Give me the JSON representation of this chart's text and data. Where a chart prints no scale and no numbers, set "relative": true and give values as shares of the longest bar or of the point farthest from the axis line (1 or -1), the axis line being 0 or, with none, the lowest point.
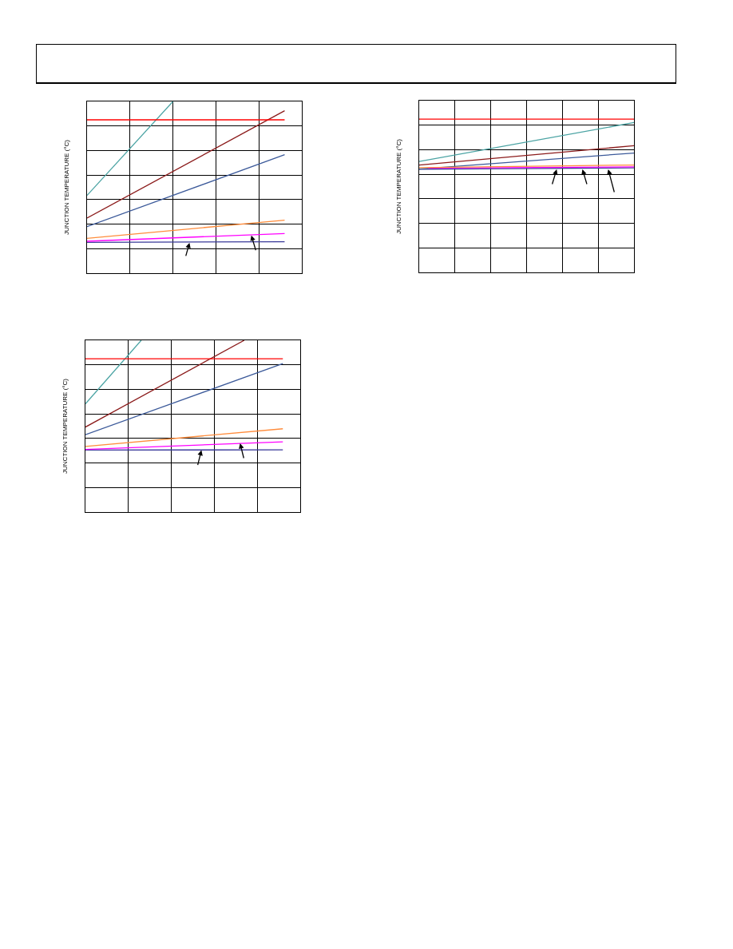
{
  "chart_data": [
    {
      "type": "line",
      "ylabel": "JUNCTION TEMPERATURE (°C)",
      "relative": true,
      "grid": true,
      "marker": "none",
      "line_style": "solid",
      "categories": [
        null,
        null,
        null,
        null,
        null,
        null,
        null,
        null,
        null,
        null,
        null,
        null,
        null,
        null,
        null,
        null,
        null,
        null,
        null,
        null,
        null,
        null,
        null,
        null
      ],
      "series": [
        {
          "color": "#ff0000",
          "values": [
            0.893,
            null,
            null,
            null,
            null,
            null,
            null,
            null,
            null,
            null,
            null,
            null,
            null,
            null,
            null,
            null,
            null,
            null,
            null,
            null,
            null,
            null,
            null,
            0.893
          ]
        },
        {
          "color": "#4aa3a3",
          "values": [
            0.453,
            null,
            null,
            null,
            null,
            null,
            null,
            null,
            null,
            null,
            1.0,
            null,
            null,
            null,
            null,
            null,
            null,
            null,
            null,
            null,
            null,
            null,
            null,
            null
          ]
        },
        {
          "color": "#8b1a1a",
          "values": [
            0.321,
            null,
            null,
            null,
            null,
            null,
            null,
            null,
            null,
            null,
            null,
            null,
            null,
            null,
            null,
            null,
            null,
            null,
            null,
            null,
            null,
            null,
            null,
            0.946
          ]
        },
        {
          "color": "#3c5a9a",
          "values": [
            0.271,
            null,
            null,
            null,
            null,
            null,
            null,
            null,
            null,
            null,
            null,
            null,
            null,
            null,
            null,
            null,
            null,
            null,
            null,
            null,
            null,
            null,
            null,
            0.69
          ]
        },
        {
          "color": "#ff8c3c",
          "values": [
            0.203,
            null,
            null,
            null,
            null,
            null,
            null,
            null,
            null,
            null,
            null,
            null,
            null,
            null,
            null,
            null,
            null,
            null,
            null,
            null,
            null,
            null,
            null,
            0.309
          ]
        },
        {
          "color": "#ff00ff",
          "values": [
            0.186,
            null,
            null,
            null,
            null,
            null,
            null,
            null,
            null,
            null,
            null,
            null,
            null,
            null,
            null,
            null,
            null,
            null,
            null,
            null,
            null,
            null,
            null,
            0.231
          ]
        },
        {
          "color": "#3a3a9a",
          "values": [
            0.18,
            null,
            null,
            null,
            null,
            null,
            null,
            null,
            null,
            null,
            null,
            null,
            null,
            null,
            null,
            null,
            null,
            null,
            null,
            null,
            null,
            null,
            null,
            0.183
          ]
        }
      ]
    },
    {
      "type": "line",
      "ylabel": "JUNCTION TEMPERATURE (°C)",
      "relative": true,
      "grid": true,
      "marker": "none",
      "line_style": "solid",
      "categories": [
        null,
        null,
        null,
        null,
        null,
        null,
        null,
        null,
        null,
        null,
        null,
        null,
        null,
        null,
        null,
        null,
        null,
        null,
        null,
        null,
        null,
        null,
        null,
        null,
        null
      ],
      "series": [
        {
          "color": "#ff0000",
          "values": [
            1.0,
            null,
            null,
            null,
            null,
            null,
            null,
            null,
            null,
            null,
            null,
            null,
            null,
            null,
            null,
            null,
            null,
            null,
            null,
            null,
            null,
            null,
            null,
            null,
            1.0
          ]
        },
        {
          "color": "#4aa3a3",
          "values": [
            0.724,
            null,
            null,
            null,
            null,
            null,
            null,
            null,
            null,
            null,
            null,
            null,
            null,
            null,
            null,
            null,
            null,
            null,
            null,
            null,
            null,
            null,
            null,
            null,
            0.978
          ]
        },
        {
          "color": "#8b1a1a",
          "values": [
            0.701,
            null,
            null,
            null,
            null,
            null,
            null,
            null,
            null,
            null,
            null,
            null,
            null,
            null,
            null,
            null,
            null,
            null,
            null,
            null,
            null,
            null,
            null,
            null,
            0.827
          ]
        },
        {
          "color": "#3c5a9a",
          "values": [
            0.675,
            null,
            null,
            null,
            null,
            null,
            null,
            null,
            null,
            null,
            null,
            null,
            null,
            null,
            null,
            null,
            null,
            null,
            null,
            null,
            null,
            null,
            null,
            null,
            0.779
          ]
        },
        {
          "color": "#ff8c3c",
          "values": [
            0.684,
            null,
            null,
            null,
            null,
            null,
            null,
            null,
            null,
            null,
            null,
            null,
            null,
            null,
            null,
            null,
            null,
            null,
            null,
            null,
            null,
            null,
            null,
            null,
            0.701
          ]
        },
        {
          "color": "#ff00ff",
          "values": [
            null,
            0.681,
            null,
            null,
            null,
            null,
            null,
            null,
            null,
            null,
            null,
            null,
            null,
            null,
            null,
            null,
            null,
            null,
            null,
            null,
            null,
            null,
            null,
            null,
            0.689
          ]
        },
        {
          "color": "#3a3a9a",
          "values": [
            0.674,
            null,
            null,
            null,
            null,
            null,
            null,
            null,
            null,
            null,
            null,
            null,
            null,
            null,
            null,
            null,
            null,
            null,
            null,
            null,
            null,
            null,
            null,
            null,
            0.682
          ]
        }
      ]
    },
    {
      "type": "line",
      "ylabel": "JUNCTION TEMPERATURE (°C)",
      "relative": true,
      "grid": true,
      "marker": "none",
      "line_style": "solid",
      "categories": [
        null,
        null,
        null,
        null,
        null,
        null,
        null,
        null,
        null,
        null,
        null,
        null,
        null,
        null,
        null,
        null,
        null,
        null,
        null,
        null,
        null,
        null,
        null,
        null,
        null,
        null,
        null,
        null,
        null,
        null,
        null,
        null,
        null,
        null,
        null,
        null,
        null,
        null,
        null,
        null,
        null,
        null,
        null,
        null,
        null,
        null,
        null
      ],
      "series": [
        {
          "color": "#ff0000",
          "values": [
            0.892,
            null,
            null,
            null,
            null,
            null,
            null,
            null,
            null,
            null,
            null,
            null,
            null,
            null,
            null,
            null,
            null,
            null,
            null,
            null,
            null,
            null,
            null,
            null,
            null,
            null,
            null,
            null,
            null,
            null,
            null,
            null,
            null,
            null,
            null,
            null,
            null,
            null,
            null,
            null,
            null,
            null,
            null,
            null,
            null,
            null,
            0.892
          ]
        },
        {
          "color": "#4aa3a3",
          "values": [
            0.63,
            null,
            null,
            null,
            null,
            null,
            null,
            null,
            null,
            null,
            null,
            null,
            null,
            1.0,
            null,
            null,
            null,
            null,
            null,
            null,
            null,
            null,
            null,
            null,
            null,
            null,
            null,
            null,
            null,
            null,
            null,
            null,
            null,
            null,
            null,
            null,
            null,
            null,
            null,
            null,
            null,
            null,
            null,
            null,
            null,
            null,
            null
          ]
        },
        {
          "color": "#8b1a1a",
          "values": [
            0.495,
            null,
            null,
            null,
            null,
            null,
            null,
            null,
            null,
            null,
            null,
            null,
            null,
            null,
            null,
            null,
            null,
            null,
            null,
            null,
            null,
            null,
            null,
            null,
            null,
            null,
            null,
            null,
            null,
            null,
            null,
            null,
            null,
            null,
            null,
            null,
            null,
            1.0,
            null,
            null,
            null,
            null,
            null,
            null,
            null,
            null,
            null
          ]
        },
        {
          "color": "#3c5a9a",
          "values": [
            0.45,
            null,
            null,
            null,
            null,
            null,
            null,
            null,
            null,
            null,
            null,
            null,
            null,
            null,
            null,
            null,
            null,
            null,
            null,
            null,
            null,
            null,
            null,
            null,
            null,
            null,
            null,
            null,
            null,
            null,
            null,
            null,
            null,
            null,
            null,
            null,
            null,
            null,
            null,
            null,
            null,
            null,
            null,
            null,
            null,
            null,
            0.865
          ]
        },
        {
          "color": "#ff8c3c",
          "values": [
            0.382,
            null,
            null,
            null,
            null,
            null,
            null,
            null,
            null,
            null,
            null,
            null,
            null,
            null,
            null,
            null,
            null,
            null,
            null,
            null,
            null,
            null,
            null,
            null,
            null,
            null,
            null,
            null,
            null,
            null,
            null,
            null,
            null,
            null,
            null,
            null,
            null,
            null,
            null,
            null,
            null,
            null,
            null,
            null,
            null,
            null,
            0.485
          ]
        },
        {
          "color": "#ff00ff",
          "values": [
            0.365,
            null,
            null,
            null,
            null,
            null,
            null,
            null,
            null,
            null,
            null,
            null,
            null,
            null,
            null,
            null,
            null,
            null,
            null,
            null,
            null,
            null,
            null,
            null,
            null,
            null,
            null,
            null,
            null,
            null,
            null,
            null,
            null,
            null,
            null,
            null,
            null,
            null,
            null,
            null,
            null,
            null,
            null,
            null,
            null,
            null,
            0.409
          ]
        },
        {
          "color": "#3a3a9a",
          "values": [
            0.361,
            null,
            null,
            null,
            null,
            null,
            null,
            null,
            null,
            null,
            null,
            null,
            null,
            null,
            null,
            null,
            null,
            null,
            null,
            null,
            null,
            null,
            null,
            null,
            null,
            null,
            null,
            null,
            null,
            null,
            null,
            null,
            null,
            null,
            null,
            null,
            null,
            null,
            null,
            null,
            null,
            null,
            null,
            null,
            null,
            null,
            0.362
          ]
        }
      ]
    }
  ]
}
